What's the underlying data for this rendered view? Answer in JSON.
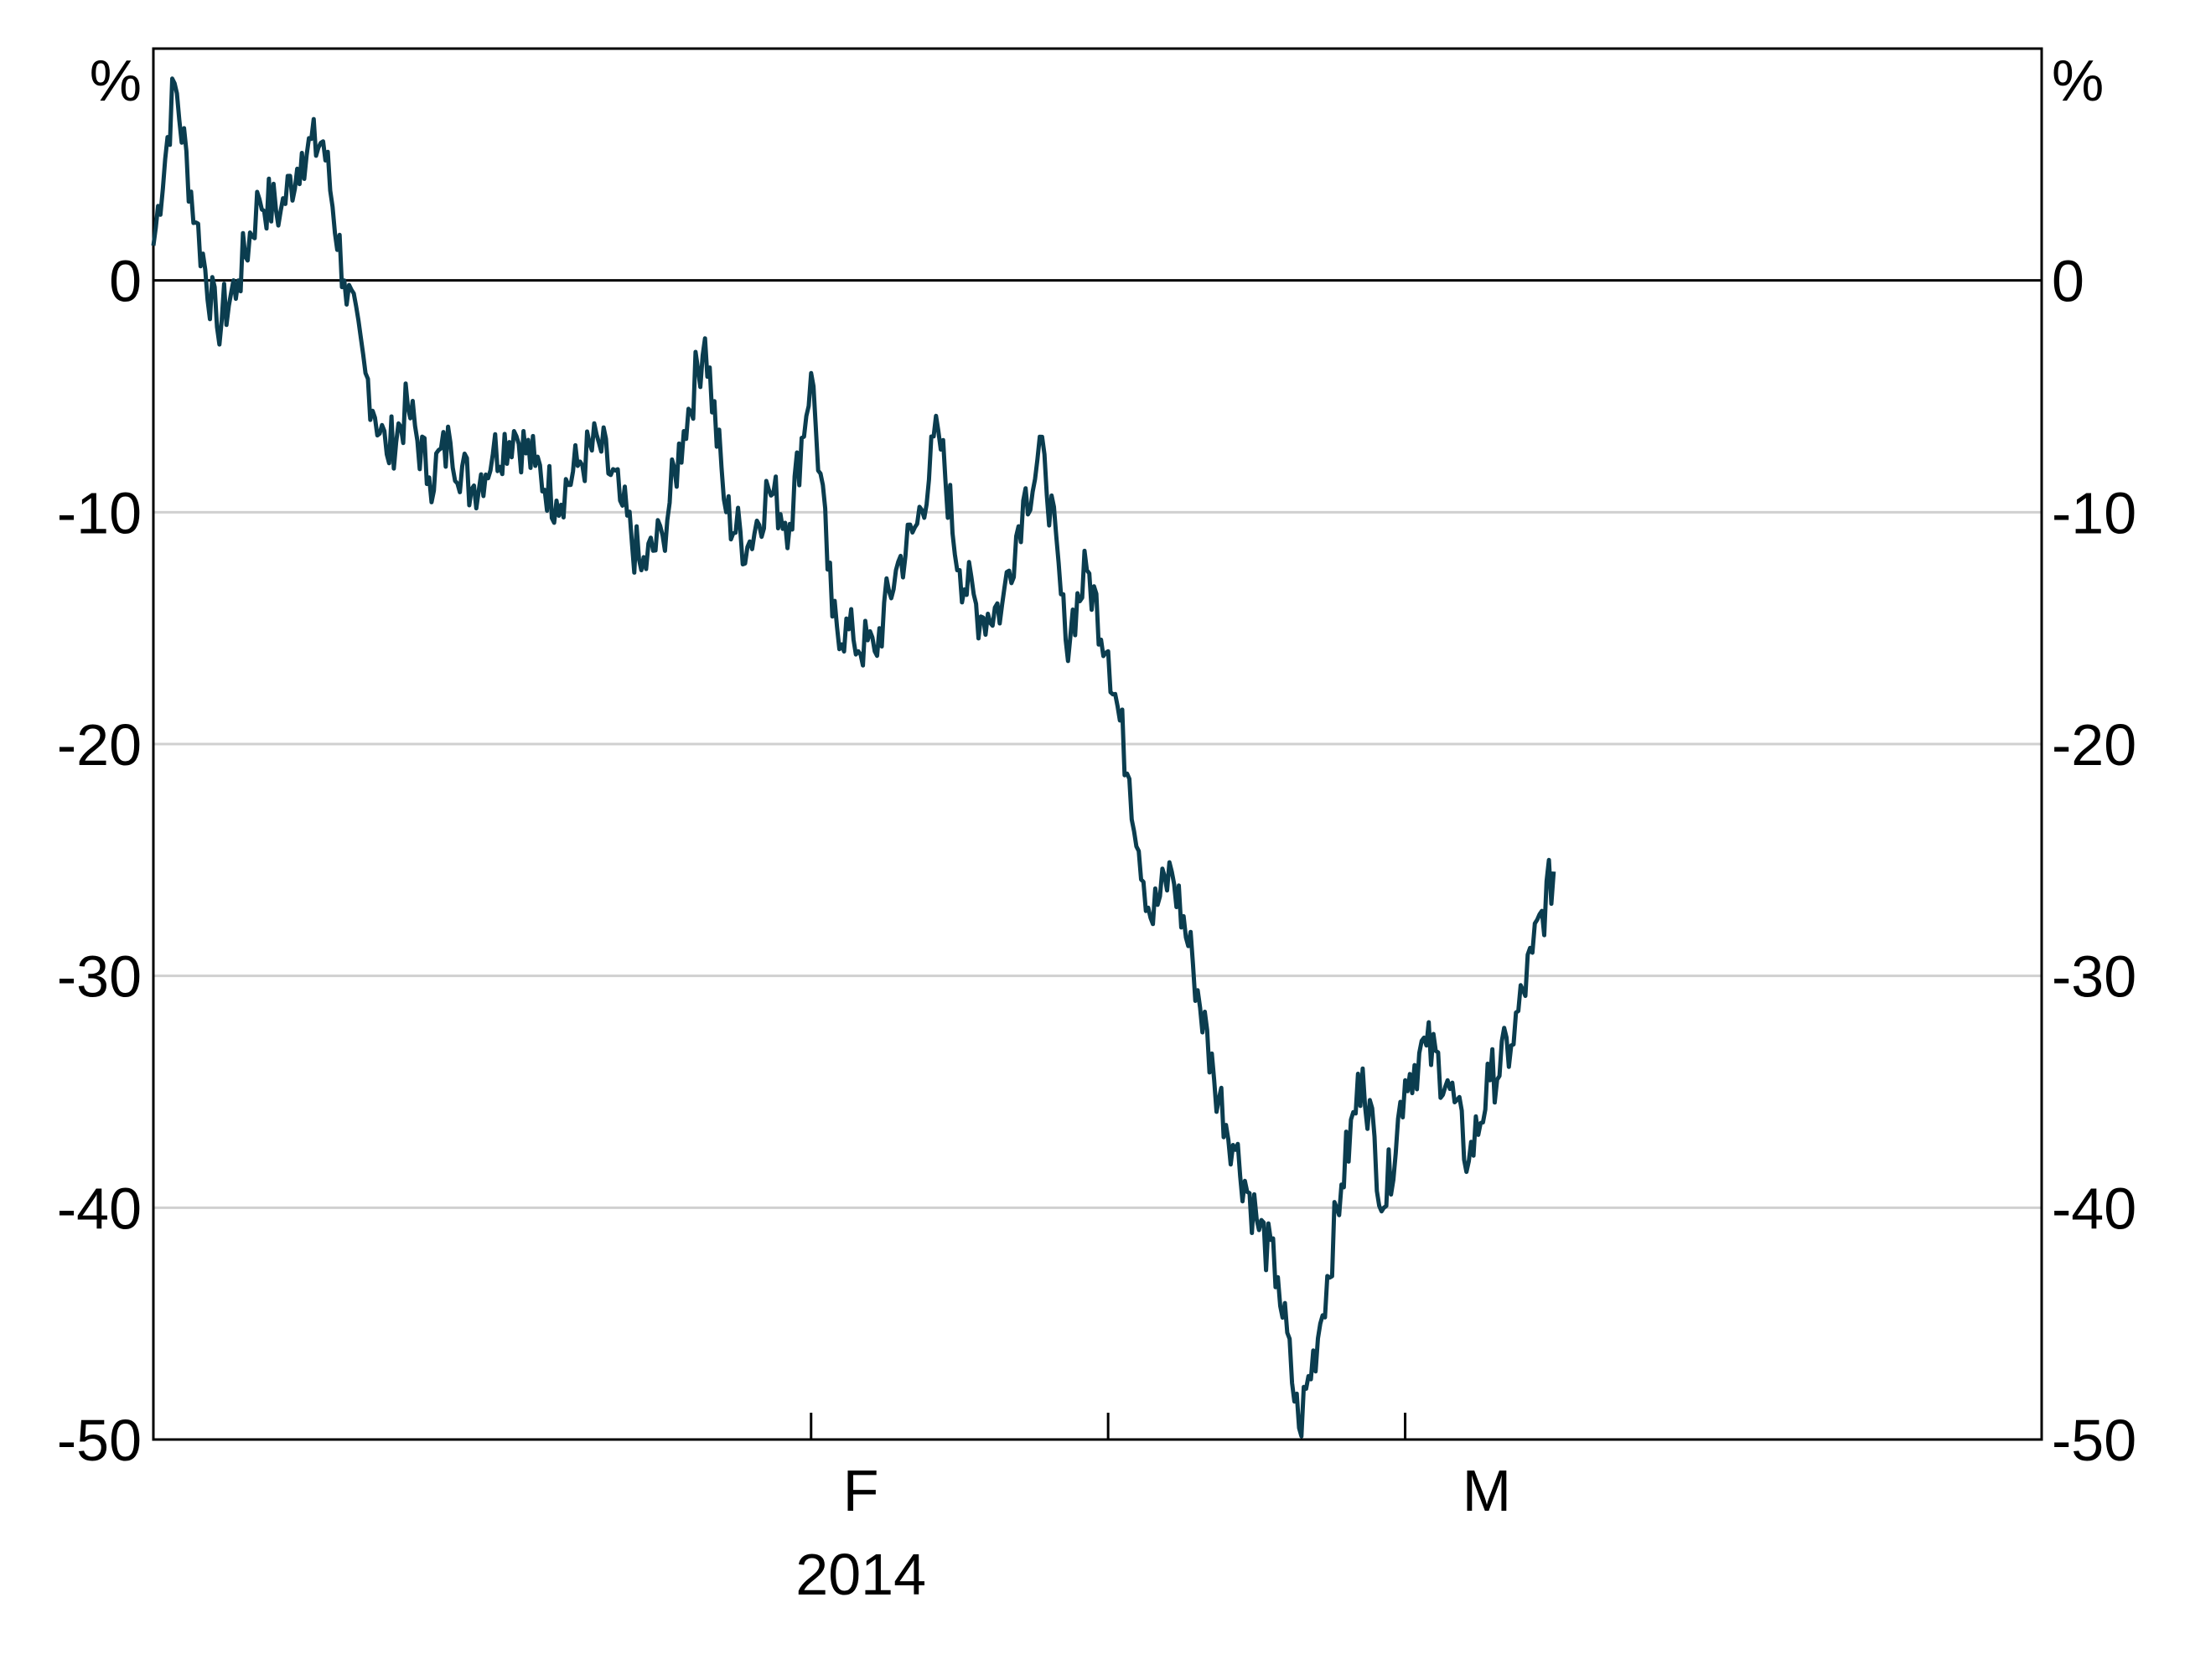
{
  "chart_data": {
    "type": "line",
    "title": "",
    "xlabel": "",
    "ylabel": "",
    "y_unit_left": "%",
    "y_unit_right": "%",
    "ylim": [
      -50,
      10
    ],
    "y_ticks": [
      -50,
      -40,
      -30,
      -20,
      -10,
      0
    ],
    "y_tick_labels": [
      "-50",
      "-40",
      "-30",
      "-20",
      "-10",
      "0"
    ],
    "grid": "horizontal",
    "zero_line": true,
    "xlim": [
      "2014-01-01",
      "2014-03-31"
    ],
    "x_ticks": [
      {
        "label": "F",
        "date": "2014-02-01",
        "year": "2014"
      },
      {
        "label": "M",
        "date": "2014-03-01",
        "year": ""
      }
    ],
    "x_minor_ticks": [
      "2014-02-15"
    ],
    "line_color": "#0b3d4f",
    "series": [
      {
        "x": [
          "2014-01-01",
          "2014-01-02",
          "2014-01-03",
          "2014-01-04",
          "2014-01-05",
          "2014-01-06",
          "2014-01-07",
          "2014-01-08",
          "2014-01-09",
          "2014-01-10",
          "2014-01-11",
          "2014-01-12",
          "2014-01-13",
          "2014-01-14",
          "2014-01-15",
          "2014-01-16",
          "2014-01-17",
          "2014-01-18",
          "2014-01-19",
          "2014-01-20",
          "2014-01-21",
          "2014-01-22",
          "2014-01-23",
          "2014-01-24",
          "2014-01-25",
          "2014-01-26",
          "2014-01-27",
          "2014-01-28",
          "2014-01-29",
          "2014-01-30",
          "2014-01-31",
          "2014-02-01",
          "2014-02-02",
          "2014-02-03",
          "2014-02-04",
          "2014-02-05",
          "2014-02-06",
          "2014-02-07",
          "2014-02-08",
          "2014-02-09",
          "2014-02-10",
          "2014-02-11",
          "2014-02-12",
          "2014-02-13",
          "2014-02-14",
          "2014-02-15",
          "2014-02-16",
          "2014-02-17",
          "2014-02-18",
          "2014-02-19",
          "2014-02-20",
          "2014-02-21",
          "2014-02-22",
          "2014-02-23",
          "2014-02-24",
          "2014-02-25",
          "2014-02-26",
          "2014-02-27",
          "2014-02-28"
        ],
        "values": [
          1.5,
          8.5,
          2.5,
          -2.0,
          0.0,
          3.5,
          3.0,
          5.5,
          6.0,
          0.0,
          -4.0,
          -7.5,
          -5.5,
          -8.5,
          -7.0,
          -9.0,
          -7.5,
          -6.5,
          -8.0,
          -9.5,
          -8.0,
          -7.0,
          -9.5,
          -12.5,
          -11.0,
          -6.5,
          -2.5,
          -10.0,
          -11.5,
          -9.0,
          -10.5,
          -4.0,
          -14.5,
          -15.5,
          -16.0,
          -12.5,
          -10.5,
          -6.5,
          -12.5,
          -14.5,
          -14.0,
          -9.5,
          -7.5,
          -15.5,
          -12.5,
          -16.0,
          -21.5,
          -27.5,
          -25.5,
          -29.5,
          -34.5,
          -37.5,
          -40.5,
          -43.0,
          -49.5,
          -45.0,
          -39.0,
          -34.0,
          -40.0
        ]
      }
    ],
    "series_tail": {
      "x": [
        "2014-03-01",
        "2014-03-02",
        "2014-03-03",
        "2014-03-04",
        "2014-03-05",
        "2014-03-06",
        "2014-03-07",
        "2014-03-08"
      ],
      "values": [
        -34.5,
        -33.0,
        -34.5,
        -38.0,
        -34.5,
        -33.0,
        -29.0,
        -25.5
      ]
    }
  }
}
